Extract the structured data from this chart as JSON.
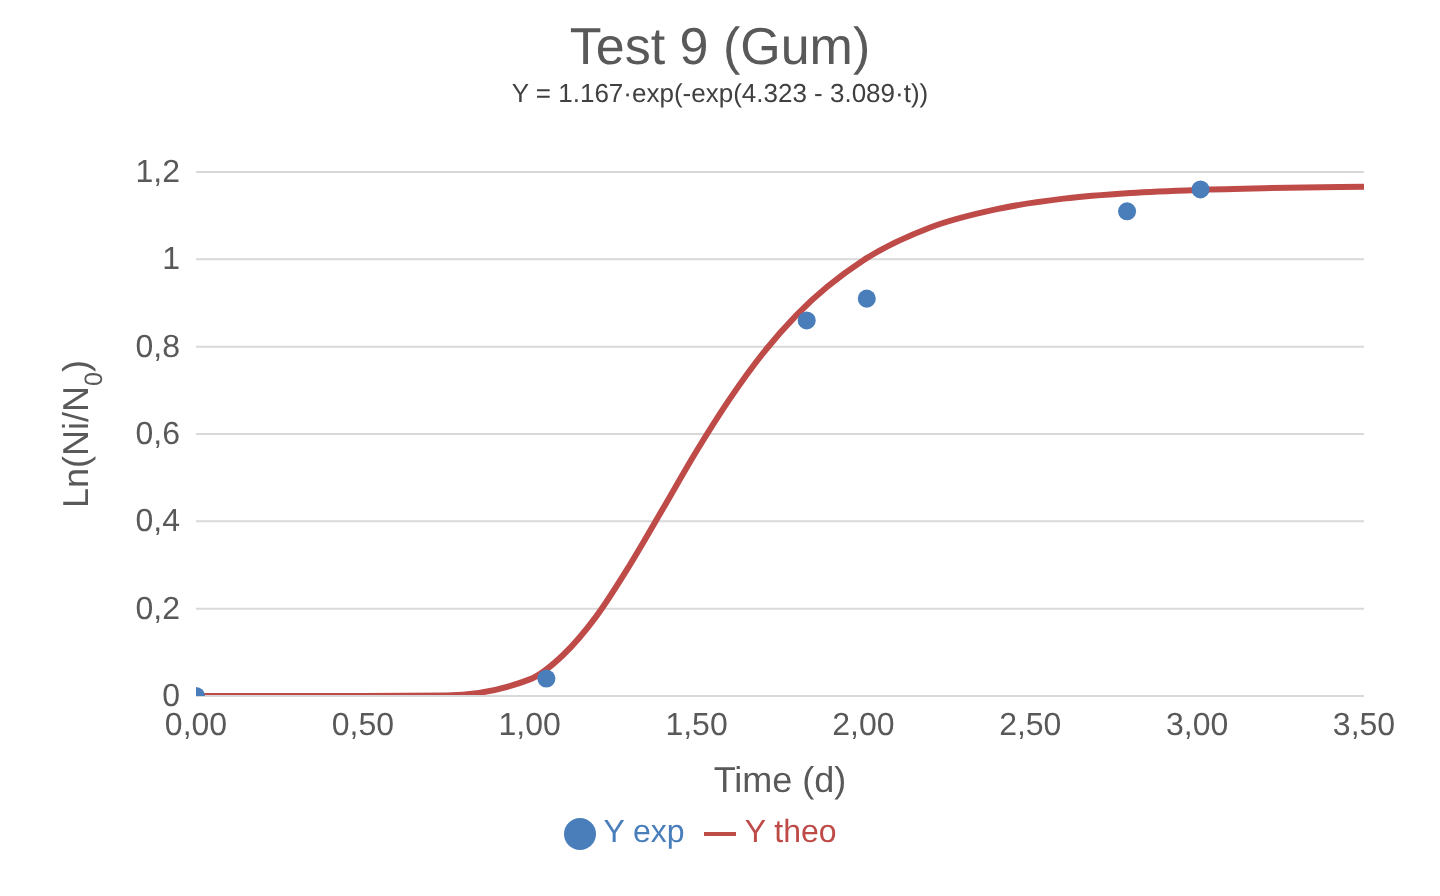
{
  "chart_data": {
    "type": "scatter",
    "title": "Test 9 (Gum)",
    "subtitle": "Y = 1.167·exp(-exp(4.323 - 3.089·t))",
    "xlabel": "Time (d)",
    "ylabel": "Ln(Ni/N$_{0}$)",
    "xlim": [
      0,
      3.5
    ],
    "xticks": [
      {
        "value": 0,
        "label": "0,00"
      },
      {
        "value": 0.5,
        "label": "0,50"
      },
      {
        "value": 1,
        "label": "1,00"
      },
      {
        "value": 1.5,
        "label": "1,50"
      },
      {
        "value": 2,
        "label": "2,00"
      },
      {
        "value": 2.5,
        "label": "2,50"
      },
      {
        "value": 3,
        "label": "3,00"
      },
      {
        "value": 3.5,
        "label": "3,50"
      }
    ],
    "ylim": [
      0,
      1.2
    ],
    "yticks": [
      0,
      {
        "value": 0.2,
        "label": "0,2"
      },
      {
        "value": 0.4,
        "label": "0,4"
      },
      {
        "value": 0.6,
        "label": "0,6"
      },
      {
        "value": 0.8,
        "label": "0,8"
      },
      1,
      {
        "value": 1.2,
        "label": "1,2"
      }
    ],
    "grid": "y",
    "legend": "bottom",
    "series": [
      {
        "name": "Y exp",
        "type": "scatter",
        "marker": "circle",
        "color": "#4a7ebb",
        "x": [
          0,
          1.05,
          1.83,
          2.01,
          2.79,
          3.01
        ],
        "values": [
          0,
          0.04,
          0.86,
          0.91,
          1.11,
          1.16
        ]
      },
      {
        "name": "Y theo",
        "type": "line",
        "marker": "none",
        "color": "#be4b48",
        "x": [
          0,
          0.5,
          0.75,
          1.0,
          1.1,
          1.2,
          1.3,
          1.4,
          1.5,
          1.6,
          1.7,
          1.8,
          2.0,
          2.2,
          2.4,
          2.6,
          2.8,
          3.0,
          3.2,
          3.5
        ],
        "values": [
          0,
          0,
          0.001,
          0.038,
          0.094,
          0.183,
          0.3,
          0.43,
          0.561,
          0.681,
          0.786,
          0.873,
          0.998,
          1.073,
          1.115,
          1.139,
          1.152,
          1.159,
          1.163,
          1.166
        ]
      }
    ]
  }
}
